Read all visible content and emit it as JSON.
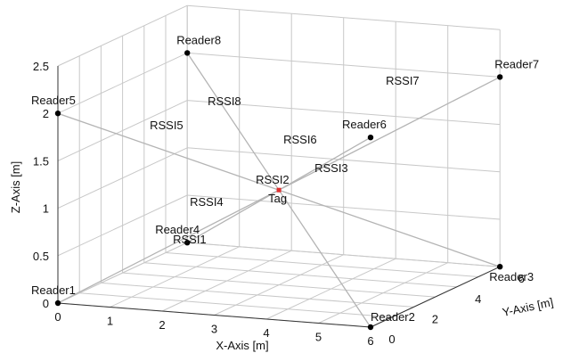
{
  "chart_data": {
    "type": "scatter3d",
    "title": "",
    "axes": {
      "x": {
        "label": "X-Axis [m]",
        "range": [
          0,
          6
        ],
        "ticks": [
          "0",
          "1",
          "2",
          "3",
          "4",
          "5",
          "6"
        ]
      },
      "y": {
        "label": "Y-Axis [m]",
        "range": [
          0,
          6
        ],
        "ticks": [
          "0",
          "2",
          "4",
          "6"
        ]
      },
      "z": {
        "label": "Z-Axis [m]",
        "range": [
          0,
          2.5
        ],
        "ticks": [
          "0",
          "0.5",
          "1",
          "1.5",
          "2",
          "2.5"
        ]
      }
    },
    "grid": true,
    "tag": {
      "label": "Tag",
      "x": 3,
      "y": 3,
      "z": 1.0,
      "color": "#e03030"
    },
    "readers": [
      {
        "label": "Reader1",
        "rssi": "",
        "x": 0,
        "y": 0,
        "z": 0
      },
      {
        "label": "Reader2",
        "rssi": "RSSI2",
        "x": 6,
        "y": 0,
        "z": 0
      },
      {
        "label": "Reader3",
        "rssi": "RSSI3",
        "x": 6,
        "y": 6,
        "z": 0
      },
      {
        "label": "Reader4",
        "rssi": "RSSI4",
        "x": 0,
        "y": 6,
        "z": 0
      },
      {
        "label": "Reader5",
        "rssi": "RSSI5",
        "x": 0,
        "y": 0,
        "z": 2.0
      },
      {
        "label": "Reader6",
        "rssi": "RSSI6",
        "x": 6,
        "y": 0,
        "z": 2.0
      },
      {
        "label": "Reader7",
        "rssi": "RSSI7",
        "x": 6,
        "y": 6,
        "z": 2.0
      },
      {
        "label": "Reader8",
        "rssi": "RSSI8",
        "x": 0,
        "y": 6,
        "z": 2.0
      }
    ],
    "link_labels": [
      {
        "text": "RSSI1"
      }
    ],
    "colors": {
      "grid": "#c8c8c8",
      "link": "#b4b4b4",
      "reader": "#000000",
      "tag": "#e03030"
    }
  }
}
